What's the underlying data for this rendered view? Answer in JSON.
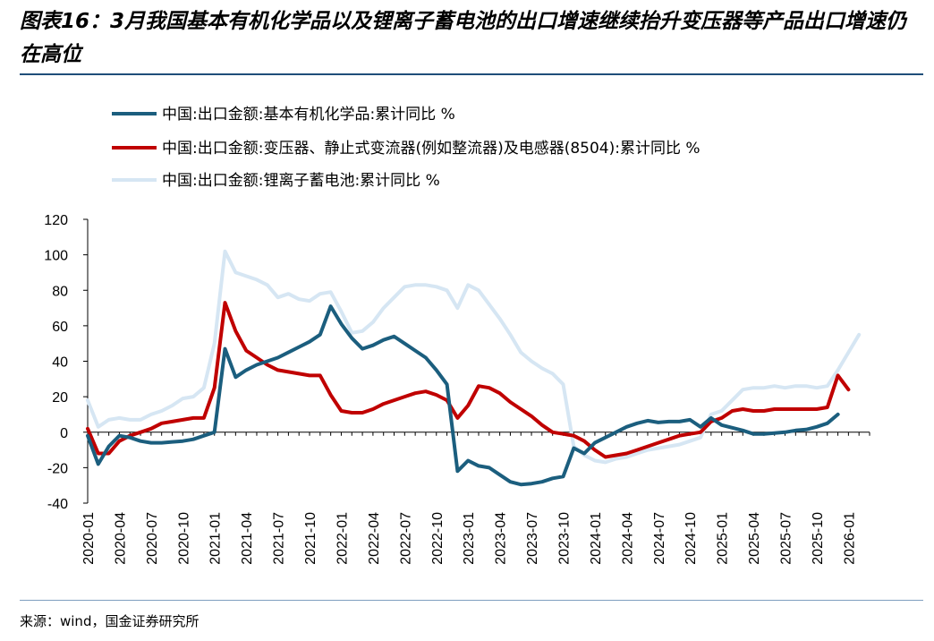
{
  "figure": {
    "title": "图表16：3月我国基本有机化学品以及锂离子蓄电池的出口增速继续抬升变压器等产品出口增速仍在高位",
    "source": "来源：wind，国金证券研究所"
  },
  "chart_data": {
    "type": "line",
    "title": "",
    "xlabel": "",
    "ylabel": "",
    "ylim": [
      -40,
      120
    ],
    "yticks": [
      -40,
      -20,
      0,
      20,
      40,
      60,
      80,
      100,
      120
    ],
    "grid": false,
    "legend_position": "top-left",
    "x": [
      "2020-01",
      "2020-02",
      "2020-03",
      "2020-04",
      "2020-05",
      "2020-06",
      "2020-07",
      "2020-08",
      "2020-09",
      "2020-10",
      "2020-11",
      "2020-12",
      "2021-01",
      "2021-02",
      "2021-03",
      "2021-04",
      "2021-05",
      "2021-06",
      "2021-07",
      "2021-08",
      "2021-09",
      "2021-10",
      "2021-11",
      "2021-12",
      "2022-01",
      "2022-02",
      "2022-03",
      "2022-04",
      "2022-05",
      "2022-06",
      "2022-07",
      "2022-08",
      "2022-09",
      "2022-10",
      "2022-11",
      "2022-12",
      "2023-01",
      "2023-02",
      "2023-03",
      "2023-04",
      "2023-05",
      "2023-06",
      "2023-07",
      "2023-08",
      "2023-09",
      "2023-10",
      "2023-11",
      "2023-12",
      "2024-01",
      "2024-02",
      "2024-03",
      "2024-04",
      "2024-05",
      "2024-06",
      "2024-07",
      "2024-08",
      "2024-09",
      "2024-10",
      "2024-11",
      "2024-12",
      "2025-01",
      "2025-02",
      "2025-03",
      "2025-04",
      "2025-05",
      "2025-06",
      "2025-07",
      "2025-08",
      "2025-09",
      "2025-10",
      "2025-11",
      "2025-12",
      "2026-01",
      "2026-02",
      "2026-03"
    ],
    "xtick_labels": [
      "2020-01",
      "2020-04",
      "2020-07",
      "2020-10",
      "2021-01",
      "2021-04",
      "2021-07",
      "2021-10",
      "2022-01",
      "2022-04",
      "2022-07",
      "2022-10",
      "2023-01",
      "2023-04",
      "2023-07",
      "2023-10",
      "2024-01",
      "2024-04",
      "2024-07",
      "2024-10",
      "2025-01",
      "2025-04",
      "2025-07",
      "2025-10",
      "2026-01"
    ],
    "series": [
      {
        "name": "中国:出口金额:基本有机化学品:累计同比 %",
        "color": "#1b5e7e",
        "values": [
          -2,
          -18,
          -8,
          -2,
          -3,
          -5,
          -6,
          -6,
          -5.5,
          -5,
          -4,
          -2,
          0,
          47,
          31,
          35,
          38,
          40,
          42,
          45,
          48,
          51,
          55,
          71,
          61,
          53,
          47,
          49,
          52,
          54,
          50,
          46,
          42,
          35,
          27,
          -22,
          -16,
          -19,
          -20,
          -24,
          -28,
          -29.5,
          -29,
          -28,
          -26,
          -25,
          -9,
          -12,
          -6,
          -3,
          0,
          3,
          5,
          6.5,
          5.5,
          6,
          6,
          7,
          3,
          8,
          4,
          2.5,
          1,
          -1,
          -1,
          -0.5,
          0,
          1,
          1.5,
          3,
          5,
          10,
          null,
          null,
          null
        ]
      },
      {
        "name": "中国:出口金额:变压器、静止式变流器(例如整流器)及电感器(8504):累计同比 %",
        "color": "#c00000",
        "values": [
          2,
          -12,
          -12,
          -5,
          -2,
          0,
          2,
          5,
          6,
          7,
          8,
          8,
          25,
          73,
          57,
          46,
          42,
          38,
          35,
          34,
          33,
          32,
          32,
          21,
          12,
          11,
          11,
          13,
          16,
          18,
          20,
          22,
          23,
          21,
          18,
          8,
          15,
          26,
          25,
          22,
          17,
          13,
          9,
          4,
          0,
          -1,
          -2,
          -5,
          -10,
          -14,
          -13,
          -12,
          -10,
          -8,
          -6,
          -4,
          -2,
          -1,
          0,
          6,
          8,
          12,
          13,
          12,
          12,
          13,
          13,
          13,
          13,
          13,
          14,
          32,
          24,
          null,
          null
        ]
      },
      {
        "name": "中国:出口金额:锂离子蓄电池:累计同比 %",
        "color": "#d6e6f3",
        "values": [
          18,
          3,
          7,
          8,
          7,
          7,
          10,
          12,
          15,
          19,
          20,
          25,
          50,
          102,
          90,
          88,
          86,
          83,
          76,
          78,
          75,
          74,
          78,
          79,
          68,
          56,
          57,
          62,
          70,
          76,
          82,
          83,
          83,
          82,
          80,
          70,
          83,
          80,
          72,
          64,
          55,
          45,
          40,
          36,
          33,
          27,
          -8,
          -13,
          -16,
          -17,
          -15,
          -14,
          -12,
          -10,
          -9,
          -8,
          -7,
          -5,
          -3,
          10,
          12,
          18,
          24,
          25,
          25,
          26,
          25,
          26,
          26,
          25,
          26,
          35,
          45,
          55,
          null
        ]
      }
    ]
  }
}
